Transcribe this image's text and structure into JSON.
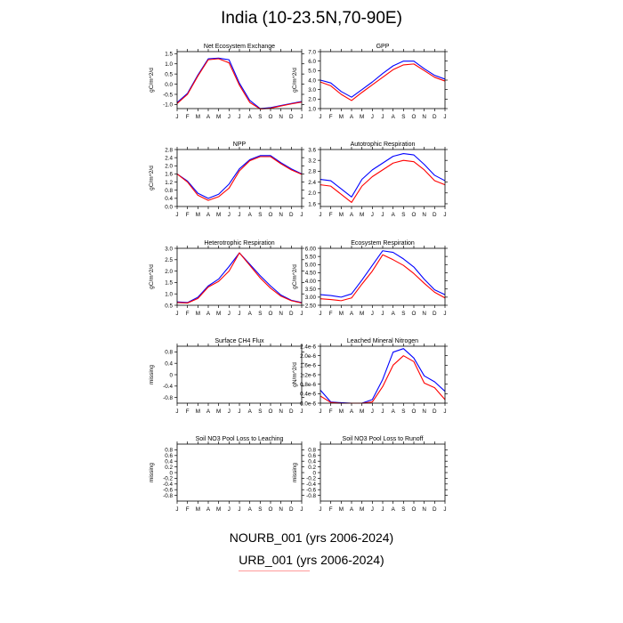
{
  "title": "India (10-23.5N,70-90E)",
  "months": [
    "J",
    "F",
    "M",
    "A",
    "M",
    "J",
    "J",
    "A",
    "S",
    "O",
    "N",
    "D",
    "J"
  ],
  "colors": {
    "case1": "#0000ff",
    "case2": "#ff0000",
    "frame": "#000000"
  },
  "legend": {
    "case1": "NOURB_001 (yrs 2006-2024)",
    "case2": "URB_001 (yrs 2006-2024)"
  },
  "chart_data": [
    {
      "type": "line",
      "title": "Net Ecosystem Exchange",
      "ylabel": "gC/m^2/d",
      "ylim": [
        -1.2,
        1.6
      ],
      "yticks": [
        -1.0,
        -0.5,
        0.0,
        0.5,
        1.0,
        1.5
      ],
      "yticklabels": [
        "-1.0",
        "-0.5",
        "0.0",
        "0.5",
        "1.0",
        "1.5"
      ],
      "series": [
        {
          "values": [
            -0.9,
            -0.45,
            0.45,
            1.25,
            1.28,
            1.2,
            0.05,
            -0.8,
            -1.2,
            -1.15,
            -1.05,
            -0.95,
            -0.85
          ]
        },
        {
          "values": [
            -0.95,
            -0.5,
            0.4,
            1.2,
            1.25,
            1.05,
            -0.05,
            -0.9,
            -1.22,
            -1.18,
            -1.07,
            -0.97,
            -0.88
          ]
        }
      ]
    },
    {
      "type": "line",
      "title": "GPP",
      "ylabel": "gC/m^2/d",
      "ylim": [
        1.0,
        7.0
      ],
      "yticks": [
        1,
        2,
        3,
        4,
        5,
        6,
        7
      ],
      "yticklabels": [
        "1.0",
        "2.0",
        "3.0",
        "4.0",
        "5.0",
        "6.0",
        "7.0"
      ],
      "series": [
        {
          "values": [
            4.0,
            3.7,
            2.8,
            2.2,
            3.0,
            3.8,
            4.7,
            5.5,
            6.0,
            6.0,
            5.2,
            4.5,
            4.1
          ]
        },
        {
          "values": [
            3.8,
            3.4,
            2.5,
            1.85,
            2.7,
            3.5,
            4.3,
            5.1,
            5.6,
            5.7,
            5.0,
            4.3,
            3.9
          ]
        }
      ]
    },
    {
      "type": "line",
      "title": "NPP",
      "ylabel": "gC/m^2/d",
      "ylim": [
        0.0,
        2.8
      ],
      "yticks": [
        0.0,
        0.4,
        0.8,
        1.2,
        1.6,
        2.0,
        2.4,
        2.8
      ],
      "yticklabels": [
        "0.0",
        "0.4",
        "0.8",
        "1.2",
        "1.6",
        "2.0",
        "2.4",
        "2.8"
      ],
      "series": [
        {
          "values": [
            1.6,
            1.25,
            0.65,
            0.4,
            0.6,
            1.1,
            1.85,
            2.3,
            2.5,
            2.5,
            2.15,
            1.85,
            1.6
          ]
        },
        {
          "values": [
            1.6,
            1.2,
            0.55,
            0.3,
            0.48,
            0.9,
            1.75,
            2.25,
            2.45,
            2.45,
            2.1,
            1.8,
            1.58
          ]
        }
      ]
    },
    {
      "type": "line",
      "title": "Autotrophic Respiration",
      "ylabel": "",
      "ylim": [
        1.5,
        3.6
      ],
      "yticks": [
        1.6,
        2.0,
        2.4,
        2.8,
        3.2,
        3.6
      ],
      "yticklabels": [
        "1.6",
        "2.0",
        "2.4",
        "2.8",
        "3.2",
        "3.6"
      ],
      "series": [
        {
          "values": [
            2.5,
            2.45,
            2.15,
            1.85,
            2.5,
            2.85,
            3.1,
            3.35,
            3.45,
            3.4,
            3.05,
            2.65,
            2.45
          ]
        },
        {
          "values": [
            2.3,
            2.25,
            1.95,
            1.65,
            2.25,
            2.6,
            2.85,
            3.1,
            3.2,
            3.15,
            2.85,
            2.45,
            2.3
          ]
        }
      ]
    },
    {
      "type": "line",
      "title": "Heterotrophic Respiration",
      "ylabel": "gC/m^2/d",
      "ylim": [
        0.5,
        3.0
      ],
      "yticks": [
        0.5,
        1.0,
        1.5,
        2.0,
        2.5,
        3.0
      ],
      "yticklabels": [
        "0.5",
        "1.0",
        "1.5",
        "2.0",
        "2.5",
        "3.0"
      ],
      "series": [
        {
          "values": [
            0.65,
            0.62,
            0.85,
            1.35,
            1.65,
            2.2,
            2.8,
            2.3,
            1.8,
            1.35,
            0.95,
            0.72,
            0.62
          ]
        },
        {
          "values": [
            0.62,
            0.6,
            0.8,
            1.3,
            1.55,
            2.0,
            2.8,
            2.25,
            1.7,
            1.25,
            0.9,
            0.7,
            0.6
          ]
        }
      ]
    },
    {
      "type": "line",
      "title": "Ecosystem Respiration",
      "ylabel": "gC/m^2/d",
      "ylim": [
        2.5,
        6.0
      ],
      "yticks": [
        2.5,
        3.0,
        3.5,
        4.0,
        4.5,
        5.0,
        5.5,
        6.0
      ],
      "yticklabels": [
        "2.50",
        "3.00",
        "3.50",
        "4.00",
        "4.50",
        "5.00",
        "5.50",
        "6.00"
      ],
      "series": [
        {
          "values": [
            3.15,
            3.1,
            3.0,
            3.2,
            4.05,
            4.95,
            5.85,
            5.75,
            5.35,
            4.85,
            4.1,
            3.45,
            3.15
          ]
        },
        {
          "values": [
            2.9,
            2.85,
            2.78,
            2.95,
            3.8,
            4.6,
            5.6,
            5.3,
            4.95,
            4.45,
            3.85,
            3.3,
            2.95
          ]
        }
      ]
    },
    {
      "type": "line",
      "title": "Surface CH4 Flux",
      "ylabel": "missing",
      "ylim": [
        -1.0,
        1.0
      ],
      "yticks": [
        -0.8,
        -0.4,
        0.0,
        0.4,
        0.8
      ],
      "yticklabels": [
        "-0.8",
        "-0.4",
        "0",
        "0.4",
        "0.8"
      ],
      "series": []
    },
    {
      "type": "line",
      "title": "Leached Mineral Nitrogen",
      "ylabel": "gN/m^2/d",
      "ylim": [
        0.0,
        2.4
      ],
      "yticks": [
        0.0,
        0.4,
        0.8,
        1.2,
        1.6,
        2.0,
        2.4
      ],
      "yticklabels": [
        "0.0e-6",
        "0.4e-6",
        "0.8e-6",
        "1.2e-6",
        "1.6e-6",
        "2.0e-6",
        "2.4e-6"
      ],
      "series": [
        {
          "values": [
            0.55,
            0.05,
            0.02,
            0.0,
            0.0,
            0.15,
            1.0,
            2.15,
            2.3,
            1.9,
            1.15,
            0.9,
            0.5
          ]
        },
        {
          "values": [
            0.3,
            0.03,
            0.0,
            0.0,
            0.0,
            0.05,
            0.7,
            1.6,
            2.0,
            1.75,
            0.85,
            0.65,
            0.15
          ]
        }
      ]
    },
    {
      "type": "line",
      "title": "Soil NO3 Pool Loss to Leaching",
      "ylabel": "missing",
      "ylim": [
        -1.0,
        1.0
      ],
      "yticks": [
        -0.8,
        -0.6,
        -0.4,
        -0.2,
        0.0,
        0.2,
        0.4,
        0.6,
        0.8
      ],
      "yticklabels": [
        "-0.8",
        "-0.6",
        "-0.4",
        "-0.2",
        "0",
        "0.2",
        "0.4",
        "0.6",
        "0.8"
      ],
      "series": []
    },
    {
      "type": "line",
      "title": "Soil NO3 Pool Loss to Runoff",
      "ylabel": "missing",
      "ylim": [
        -1.0,
        1.0
      ],
      "yticks": [
        -0.8,
        -0.6,
        -0.4,
        -0.2,
        0.0,
        0.2,
        0.4,
        0.6,
        0.8
      ],
      "yticklabels": [
        "-0.8",
        "-0.6",
        "-0.4",
        "-0.2",
        "0",
        "0.2",
        "0.4",
        "0.6",
        "0.8"
      ],
      "series": []
    }
  ]
}
